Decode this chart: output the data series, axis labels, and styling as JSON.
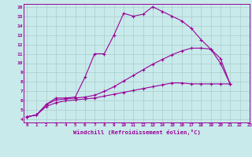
{
  "xlabel": "Windchill (Refroidissement éolien,°C)",
  "bg_color": "#c8eaea",
  "line_color": "#990099",
  "grid_color": "#aacccc",
  "series": [
    [
      4.3,
      4.5,
      5.6,
      6.3,
      6.3,
      6.4,
      8.5,
      11.0,
      11.0,
      13.0,
      15.3,
      15.0,
      15.2,
      16.0,
      15.5,
      15.0,
      14.5,
      13.7,
      12.5,
      11.5,
      10.0,
      7.8
    ],
    [
      4.3,
      4.5,
      5.6,
      6.1,
      6.2,
      6.3,
      6.4,
      6.6,
      7.0,
      7.5,
      8.1,
      8.7,
      9.3,
      9.9,
      10.4,
      10.9,
      11.3,
      11.6,
      11.6,
      11.5,
      10.5,
      7.8
    ],
    [
      4.3,
      4.5,
      5.4,
      5.8,
      6.0,
      6.1,
      6.2,
      6.3,
      6.5,
      6.7,
      6.9,
      7.1,
      7.3,
      7.5,
      7.7,
      7.9,
      7.9,
      7.8,
      7.8,
      7.8,
      7.8,
      7.8
    ]
  ],
  "x_start": 0,
  "x_end": 23,
  "y_min": 4,
  "y_max": 16,
  "yticks": [
    4,
    5,
    6,
    7,
    8,
    9,
    10,
    11,
    12,
    13,
    14,
    15,
    16
  ],
  "xticks": [
    0,
    1,
    2,
    3,
    4,
    5,
    6,
    7,
    8,
    9,
    10,
    11,
    12,
    13,
    14,
    15,
    16,
    17,
    18,
    19,
    20,
    21,
    22,
    23
  ]
}
